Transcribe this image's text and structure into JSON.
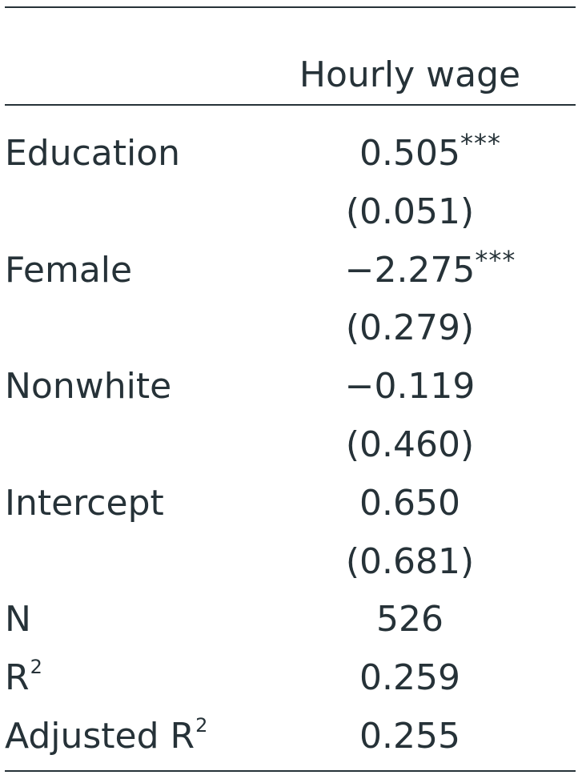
{
  "header": {
    "column": "Hourly wage"
  },
  "rows": [
    {
      "label": "Education",
      "coef": "0.505",
      "stars": "***",
      "se": "(0.051)"
    },
    {
      "label": "Female",
      "coef": "−2.275",
      "stars": "***",
      "se": "(0.279)"
    },
    {
      "label": "Nonwhite",
      "coef": "−0.119",
      "stars": "",
      "se": "(0.460)"
    },
    {
      "label": "Intercept",
      "coef": "0.650",
      "stars": "",
      "se": "(0.681)"
    }
  ],
  "stats": [
    {
      "label": "N",
      "value": "526"
    },
    {
      "label": "R",
      "sup": "2",
      "value": "0.259"
    },
    {
      "label": "Adjusted R",
      "sup": "2",
      "value": "0.255"
    }
  ]
}
